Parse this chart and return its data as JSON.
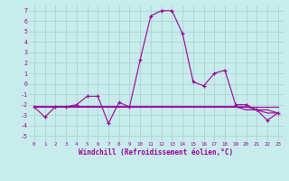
{
  "xlabel": "Windchill (Refroidissement éolien,°C)",
  "bg_color": "#c8ecec",
  "grid_color": "#aad4d4",
  "line_color": "#990099",
  "xlim": [
    -0.5,
    23.5
  ],
  "ylim": [
    -5.5,
    7.5
  ],
  "xticks": [
    0,
    1,
    2,
    3,
    4,
    5,
    6,
    7,
    8,
    9,
    10,
    11,
    12,
    13,
    14,
    15,
    16,
    17,
    18,
    19,
    20,
    21,
    22,
    23
  ],
  "yticks": [
    -5,
    -4,
    -3,
    -2,
    -1,
    0,
    1,
    2,
    3,
    4,
    5,
    6,
    7
  ],
  "hours": [
    0,
    1,
    2,
    3,
    4,
    5,
    6,
    7,
    8,
    9,
    10,
    11,
    12,
    13,
    14,
    15,
    16,
    17,
    18,
    19,
    20,
    21,
    22,
    23
  ],
  "windchill": [
    -2.2,
    -3.2,
    -2.2,
    -2.2,
    -2.0,
    -1.2,
    -1.2,
    -3.8,
    -1.8,
    -2.2,
    2.3,
    6.5,
    7.0,
    7.0,
    4.8,
    0.2,
    -0.2,
    1.0,
    1.3,
    -2.0,
    -2.0,
    -2.5,
    -3.5,
    -2.8
  ],
  "flat1": [
    -2.2,
    -2.2,
    -2.2,
    -2.2,
    -2.2,
    -2.2,
    -2.2,
    -2.2,
    -2.2,
    -2.2,
    -2.2,
    -2.2,
    -2.2,
    -2.2,
    -2.2,
    -2.2,
    -2.2,
    -2.2,
    -2.2,
    -2.2,
    -2.2,
    -2.2,
    -2.2,
    -2.2
  ],
  "flat2": [
    -2.2,
    -2.2,
    -2.2,
    -2.2,
    -2.2,
    -2.2,
    -2.2,
    -2.2,
    -2.2,
    -2.2,
    -2.2,
    -2.2,
    -2.2,
    -2.2,
    -2.2,
    -2.2,
    -2.2,
    -2.2,
    -2.2,
    -2.2,
    -2.2,
    -2.5,
    -2.5,
    -2.8
  ],
  "flat3": [
    -2.2,
    -2.2,
    -2.2,
    -2.2,
    -2.2,
    -2.2,
    -2.2,
    -2.2,
    -2.2,
    -2.2,
    -2.2,
    -2.2,
    -2.2,
    -2.2,
    -2.2,
    -2.2,
    -2.2,
    -2.2,
    -2.2,
    -2.2,
    -2.5,
    -2.5,
    -2.8,
    -2.8
  ],
  "xtick_fontsize": 4.2,
  "ytick_fontsize": 4.8,
  "xlabel_fontsize": 5.5
}
